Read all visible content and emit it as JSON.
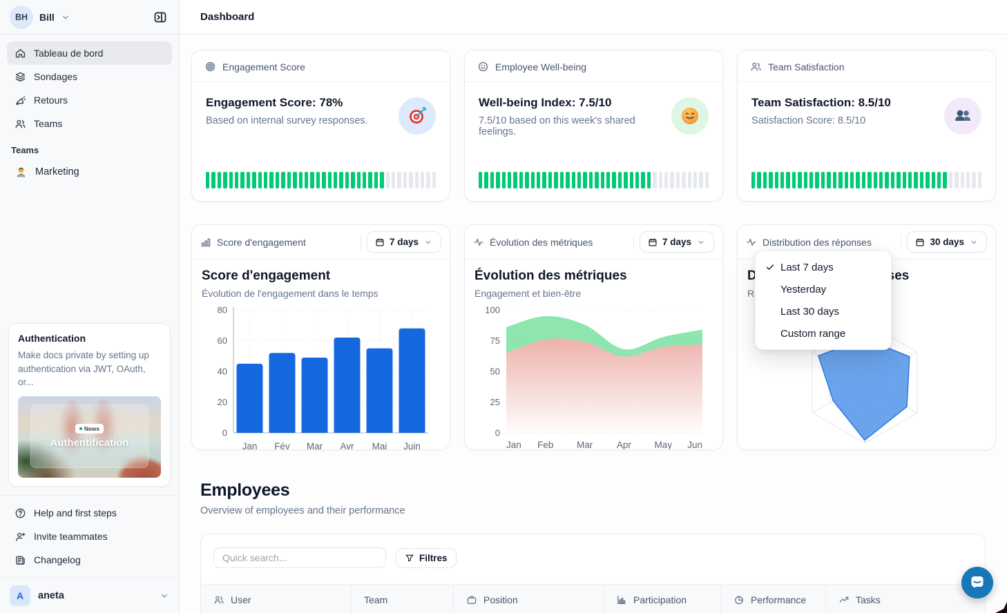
{
  "sidebar": {
    "user": {
      "initials": "BH",
      "name": "Bill"
    },
    "nav": [
      {
        "label": "Tableau de bord"
      },
      {
        "label": "Sondages"
      },
      {
        "label": "Retours"
      },
      {
        "label": "Teams"
      }
    ],
    "teams_section": {
      "label": "Teams",
      "items": [
        {
          "label": "Marketing"
        }
      ]
    },
    "promo_card": {
      "title": "Authentication",
      "body": "Make docs private by setting up authentication via JWT, OAuth, or...",
      "badge": "News",
      "image_caption": "Authentification"
    },
    "footer": [
      {
        "label": "Help and first steps"
      },
      {
        "label": "Invite teammates"
      },
      {
        "label": "Changelog"
      }
    ],
    "workspace": {
      "initial": "A",
      "name": "aneta"
    }
  },
  "topbar": {
    "title": "Dashboard"
  },
  "colors": {
    "progress_green": "#00ca75",
    "progress_gray": "#e6e9ed",
    "bar_blue": "#1568e0",
    "radar_blue": "#4a90e8",
    "area_green": "#84e3a9",
    "area_red": "#e2837a"
  },
  "stat_cards": [
    {
      "header": "Engagement Score",
      "title": "Engagement Score: 78%",
      "subtitle": "Based on internal survey responses.",
      "emoji": "target-dart",
      "emoji_bg": "#ddeafb",
      "progress_pct": 78
    },
    {
      "header": "Employee Well-being",
      "title": "Well-being Index: 7.5/10",
      "subtitle": "7.5/10 based on this week's shared feelings.",
      "emoji": "smiling-face",
      "emoji_bg": "#ddf7e4",
      "progress_pct": 75
    },
    {
      "header": "Team Satisfaction",
      "title": "Team Satisfaction: 8.5/10",
      "subtitle": "Satisfaction Score: 8.5/10",
      "emoji": "two-people-busts",
      "emoji_bg": "#f2e9fa",
      "progress_pct": 85
    }
  ],
  "chart_cards": [
    {
      "header_label": "Score d'engagement",
      "range_label": "7 days"
    },
    {
      "header_label": "Évolution des métriques",
      "range_label": "7 days"
    },
    {
      "header_label": "Distribution des réponses",
      "range_label": "30 days"
    }
  ],
  "dropdown_menu": {
    "items": [
      "Last 7 days",
      "Yesterday",
      "Last 30 days",
      "Custom range"
    ],
    "selected_index": 0
  },
  "employees": {
    "title": "Employees",
    "subtitle": "Overview of employees and their performance",
    "search_placeholder": "Quick search...",
    "filters_label": "Filtres",
    "columns": [
      "User",
      "Team",
      "Position",
      "Participation",
      "Performance",
      "Tasks"
    ]
  },
  "chart_data": [
    {
      "type": "bar",
      "title": "Score d'engagement",
      "subtitle": "Évolution de l'engagement dans le temps",
      "categories": [
        "Jan",
        "Fév",
        "Mar",
        "Avr",
        "Mai",
        "Juin"
      ],
      "values": [
        45,
        52,
        49,
        62,
        55,
        68
      ],
      "ylim": [
        0,
        80
      ],
      "yticks": [
        0,
        20,
        40,
        60,
        80
      ],
      "grid": true,
      "legend": false
    },
    {
      "type": "area",
      "title": "Évolution des métriques",
      "subtitle": "Engagement et bien-être",
      "categories": [
        "Jan",
        "Feb",
        "Mar",
        "Apr",
        "May",
        "Jun"
      ],
      "series": [
        {
          "name": "engagement",
          "color": "#84e3a9",
          "values": [
            86,
            95,
            88,
            68,
            78,
            84
          ]
        },
        {
          "name": "bien-etre",
          "color": "#e2837a",
          "values": [
            65,
            76,
            74,
            62,
            70,
            72
          ]
        }
      ],
      "ylim": [
        0,
        100
      ],
      "yticks": [
        0,
        25,
        50,
        75,
        100
      ],
      "grid": true,
      "legend": false
    },
    {
      "type": "radar",
      "title": "Distribution des réponses",
      "subtitle": "Répartition par catégorie",
      "axes_count": 6,
      "values": [
        72,
        85,
        80,
        95,
        60,
        88
      ],
      "max": 100,
      "rings": 3,
      "legend": false
    }
  ]
}
